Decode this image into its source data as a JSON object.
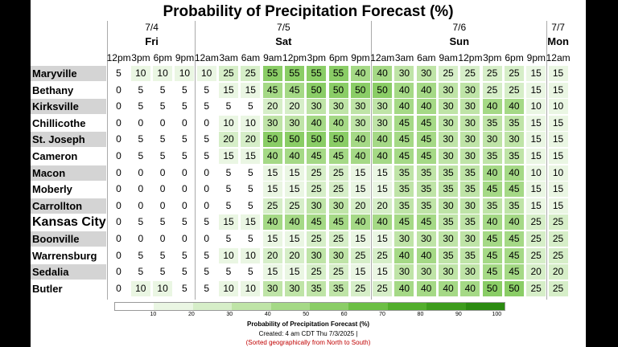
{
  "chart_data": {
    "type": "heatmap",
    "title": "Probability of Precipitation Forecast (%)",
    "days": [
      {
        "date": "7/4",
        "name": "Fri",
        "span": 4
      },
      {
        "date": "7/5",
        "name": "Sat",
        "span": 8
      },
      {
        "date": "7/6",
        "name": "Sun",
        "span": 8
      },
      {
        "date": "7/7",
        "name": "Mon",
        "span": 1
      }
    ],
    "times": [
      "12pm",
      "3pm",
      "6pm",
      "9pm",
      "12am",
      "3am",
      "6am",
      "9am",
      "12pm",
      "3pm",
      "6pm",
      "9pm",
      "12am",
      "3am",
      "6am",
      "9am",
      "12pm",
      "3pm",
      "6pm",
      "9pm",
      "12am"
    ],
    "locations": [
      "Maryville",
      "Bethany",
      "Kirksville",
      "Chillicothe",
      "St. Joseph",
      "Cameron",
      "Macon",
      "Moberly",
      "Carrollton",
      "Kansas City",
      "Boonville",
      "Warrensburg",
      "Sedalia",
      "Butler"
    ],
    "values": [
      [
        5,
        10,
        10,
        10,
        10,
        25,
        25,
        55,
        55,
        55,
        55,
        40,
        40,
        30,
        30,
        25,
        25,
        25,
        25,
        15,
        15
      ],
      [
        0,
        5,
        5,
        5,
        5,
        15,
        15,
        45,
        45,
        50,
        50,
        50,
        50,
        40,
        40,
        30,
        30,
        25,
        25,
        15,
        15
      ],
      [
        0,
        5,
        5,
        5,
        5,
        5,
        5,
        20,
        20,
        30,
        30,
        30,
        30,
        40,
        40,
        30,
        30,
        40,
        40,
        10,
        10
      ],
      [
        0,
        0,
        0,
        0,
        0,
        10,
        10,
        30,
        30,
        40,
        40,
        30,
        30,
        45,
        45,
        30,
        30,
        35,
        35,
        15,
        15
      ],
      [
        0,
        5,
        5,
        5,
        5,
        20,
        20,
        50,
        50,
        50,
        50,
        40,
        40,
        45,
        45,
        30,
        30,
        30,
        30,
        15,
        15
      ],
      [
        0,
        5,
        5,
        5,
        5,
        15,
        15,
        40,
        40,
        45,
        45,
        40,
        40,
        45,
        45,
        30,
        30,
        35,
        35,
        15,
        15
      ],
      [
        0,
        0,
        0,
        0,
        0,
        5,
        5,
        15,
        15,
        25,
        25,
        15,
        15,
        35,
        35,
        35,
        35,
        40,
        40,
        10,
        10
      ],
      [
        0,
        0,
        0,
        0,
        0,
        5,
        5,
        15,
        15,
        25,
        25,
        15,
        15,
        35,
        35,
        35,
        35,
        45,
        45,
        15,
        15
      ],
      [
        0,
        0,
        0,
        0,
        0,
        5,
        5,
        25,
        25,
        30,
        30,
        20,
        20,
        35,
        35,
        30,
        30,
        35,
        35,
        15,
        15
      ],
      [
        0,
        5,
        5,
        5,
        5,
        15,
        15,
        40,
        40,
        45,
        45,
        40,
        40,
        45,
        45,
        35,
        35,
        40,
        40,
        25,
        25
      ],
      [
        0,
        0,
        0,
        0,
        0,
        5,
        5,
        15,
        15,
        25,
        25,
        15,
        15,
        30,
        30,
        30,
        30,
        45,
        45,
        25,
        25
      ],
      [
        0,
        5,
        5,
        5,
        5,
        10,
        10,
        20,
        20,
        30,
        30,
        25,
        25,
        40,
        40,
        35,
        35,
        45,
        45,
        25,
        25
      ],
      [
        0,
        5,
        5,
        5,
        5,
        5,
        5,
        15,
        15,
        25,
        25,
        15,
        15,
        30,
        30,
        30,
        30,
        45,
        45,
        20,
        20
      ],
      [
        0,
        10,
        10,
        5,
        5,
        10,
        10,
        30,
        30,
        35,
        35,
        25,
        25,
        40,
        40,
        40,
        40,
        50,
        50,
        25,
        25
      ]
    ],
    "colorbar": {
      "ticks": [
        10,
        20,
        30,
        40,
        50,
        60,
        70,
        80,
        90,
        100
      ],
      "label": "Probability of Precipitation Forecast (%)",
      "colors": [
        "#ffffff",
        "#eaf6e3",
        "#d6eec8",
        "#bfe4a7",
        "#a5d986",
        "#8acd66",
        "#6cbf45",
        "#52ae2c",
        "#3d9c1c",
        "#2b8a10"
      ]
    }
  },
  "footer": {
    "label": "Probability of Precipitation Forecast (%)",
    "created": "Created: 4 am CDT Thu 7/3/2025  |",
    "note": "(Sorted geographically from North to South)"
  }
}
